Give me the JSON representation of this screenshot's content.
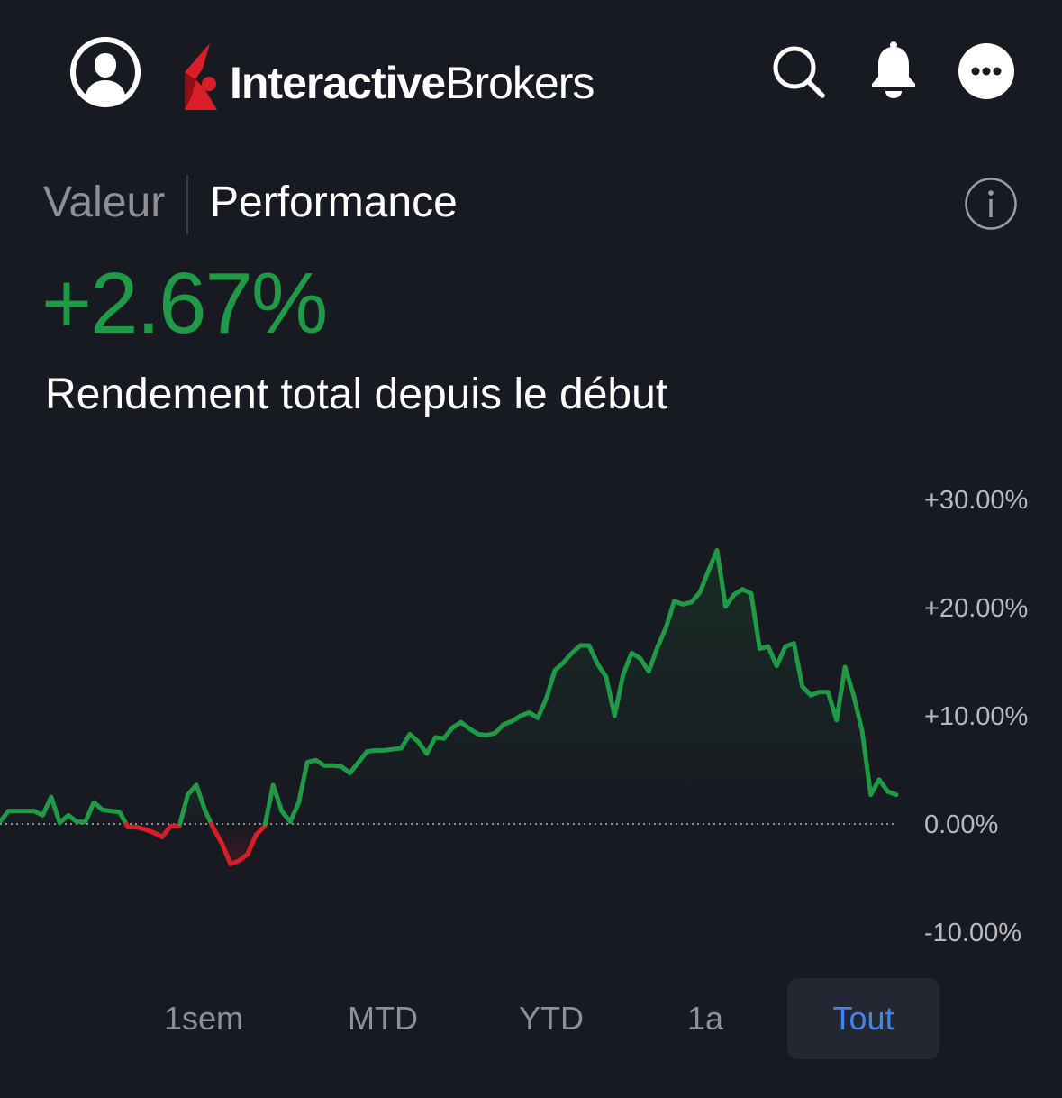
{
  "header": {
    "logo_bold": "Interactive",
    "logo_regular": "Brokers",
    "icons": [
      "avatar-icon",
      "search-icon",
      "bell-icon",
      "more-icon"
    ]
  },
  "tabs": {
    "valeur": "Valeur",
    "performance": "Performance",
    "active": "Performance"
  },
  "summary": {
    "value": "+2.67%",
    "label": "Rendement total depuis le début"
  },
  "colors": {
    "positive": "#1f9a46",
    "negative": "#d81e28",
    "accent": "#3f84f0",
    "background": "#181a21",
    "logo_red": "#d81e28"
  },
  "chart_data": {
    "type": "line",
    "ylim": [
      -15,
      33
    ],
    "y_ticks": [
      30,
      20,
      10,
      0,
      -10
    ],
    "y_tick_labels": [
      "+30.00%",
      "+20.00%",
      "+10.00%",
      "0.00%",
      "-10.00%"
    ],
    "baseline": 0,
    "series": [
      {
        "values": [
          0.2,
          1.2,
          1.2,
          1.2,
          1.2,
          0.8,
          2.5,
          0.1,
          0.8,
          0.2,
          0.2,
          2.0,
          1.3,
          1.2,
          1.1,
          -0.3,
          -0.3,
          -0.5,
          -0.8,
          -1.2,
          -0.2,
          -0.2,
          2.7,
          3.6,
          1.3,
          -0.4,
          -1.8,
          -3.7,
          -3.4,
          -2.8,
          -1.0,
          -0.2,
          3.6,
          1.2,
          0.2,
          2.0,
          5.7,
          5.9,
          5.4,
          5.4,
          5.3,
          4.7,
          5.7,
          6.7,
          6.8,
          6.8,
          6.9,
          7.0,
          8.3,
          7.6,
          6.5,
          8.0,
          7.9,
          8.9,
          9.4,
          8.8,
          8.3,
          8.2,
          8.4,
          9.2,
          9.5,
          10.0,
          10.3,
          9.8,
          11.6,
          14.2,
          14.9,
          15.8,
          16.5,
          16.5,
          14.8,
          13.6,
          10.0,
          13.8,
          15.8,
          15.3,
          14.1,
          16.3,
          18.1,
          20.6,
          20.3,
          20.5,
          21.4,
          23.4,
          25.3,
          20.1,
          21.2,
          21.7,
          21.3,
          16.2,
          16.4,
          14.6,
          16.4,
          16.7,
          12.7,
          11.9,
          12.2,
          12.2,
          9.6,
          14.5,
          11.9,
          8.6,
          2.7,
          4.1,
          3.0,
          2.7
        ]
      }
    ]
  },
  "ranges": {
    "items": [
      "1sem",
      "MTD",
      "YTD",
      "1a",
      "Tout"
    ],
    "active": "Tout"
  }
}
